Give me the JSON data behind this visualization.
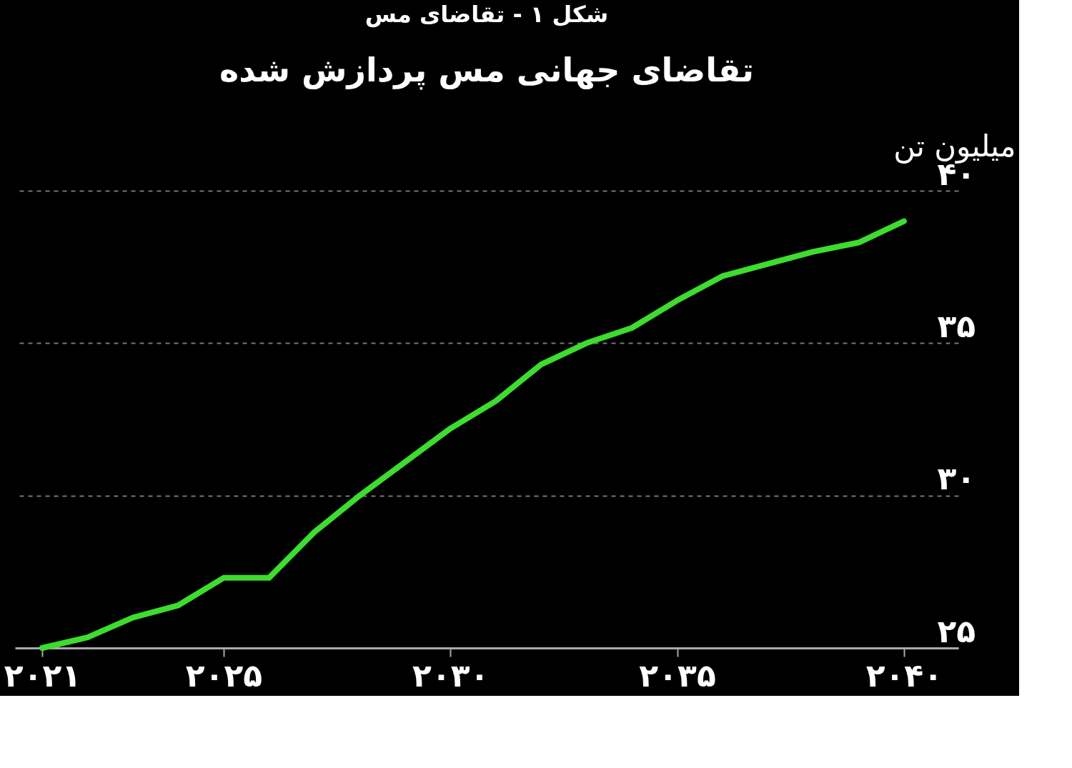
{
  "chart_data": {
    "type": "line",
    "title": "شکل ۱ - تقاضای مس",
    "subtitle": "تقاضای جهانی مس پردازش شده",
    "ylabel": "میلیون تن",
    "x": [
      2021,
      2022,
      2023,
      2024,
      2025,
      2026,
      2027,
      2028,
      2029,
      2030,
      2031,
      2032,
      2033,
      2034,
      2035,
      2036,
      2037,
      2038,
      2039,
      2040
    ],
    "series": [
      {
        "color": "#3ddc2f",
        "values": [
          25.0,
          25.35,
          26.0,
          26.4,
          27.3,
          27.3,
          28.8,
          30.0,
          31.1,
          32.2,
          33.1,
          34.3,
          35.0,
          35.5,
          36.4,
          37.2,
          37.6,
          38.0,
          38.3,
          39.0
        ]
      }
    ],
    "xlim": [
      2020.4,
      2041.2
    ],
    "xticks": [
      {
        "value": 2021,
        "label": "۲۰۲۱"
      },
      {
        "value": 2025,
        "label": "۲۰۲۵"
      },
      {
        "value": 2030,
        "label": "۲۰۳۰"
      },
      {
        "value": 2035,
        "label": "۲۰۳۵"
      },
      {
        "value": 2040,
        "label": "۲۰۴۰"
      }
    ],
    "ylim": [
      25,
      40
    ],
    "yticks": [
      {
        "value": 25,
        "label": "۲۵"
      },
      {
        "value": 30,
        "label": "۳۰"
      },
      {
        "value": 35,
        "label": "۳۵"
      },
      {
        "value": 40,
        "label": "۴۰"
      }
    ],
    "grid": "y",
    "marker": "none",
    "line_style": "solid"
  }
}
